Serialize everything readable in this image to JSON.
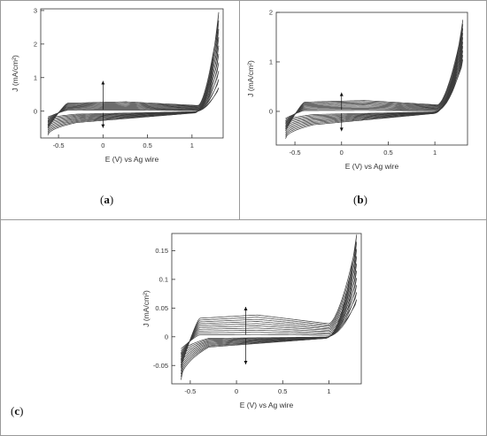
{
  "panels": {
    "a": {
      "label_open": "(",
      "label_letter": "a",
      "label_close": ")"
    },
    "b": {
      "label_open": "(",
      "label_letter": "b",
      "label_close": ")"
    },
    "c": {
      "label_open": "(",
      "label_letter": "c",
      "label_close": ")"
    }
  },
  "chart_data": [
    {
      "id": "a",
      "type": "line",
      "xlabel": "E (V) vs Ag wire",
      "ylabel": "J (mA/cm²)",
      "xlim": [
        -0.7,
        1.35
      ],
      "ylim": [
        -0.8,
        3.05
      ],
      "xticks": [
        -0.5,
        0,
        0.5,
        1
      ],
      "xtick_labels": [
        "-0.5",
        "0",
        "0.5",
        "1"
      ],
      "yticks": [
        0,
        1,
        2,
        3
      ],
      "ytick_labels": [
        "0",
        "1",
        "2",
        "3"
      ],
      "grid": false,
      "n_cycles": 10,
      "series_params": {
        "e_start": -0.62,
        "e_vertex": 1.3,
        "onset": 1.02,
        "up_plateau_first": 0.03,
        "up_plateau_last": 0.28,
        "down_plateau_first": -0.1,
        "down_plateau_last": -0.38,
        "peak_first": 0.7,
        "peak_last": 2.95,
        "tail_first": -0.25,
        "tail_last": -0.72
      },
      "arrow_at_x": 0,
      "arrow_up_to": 0.9,
      "arrow_down_to": -0.5
    },
    {
      "id": "b",
      "type": "line",
      "xlabel": "E (V) vs Ag wire",
      "ylabel": "J (mA/cm²)",
      "xlim": [
        -0.7,
        1.35
      ],
      "ylim": [
        -0.68,
        2.0
      ],
      "xticks": [
        -0.5,
        0,
        0.5,
        1
      ],
      "xtick_labels": [
        "-0.5",
        "0",
        "0.5",
        "1"
      ],
      "yticks": [
        0,
        1,
        2
      ],
      "ytick_labels": [
        "0",
        "1",
        "2"
      ],
      "grid": false,
      "n_cycles": 10,
      "series_params": {
        "e_start": -0.6,
        "e_vertex": 1.3,
        "onset": 0.98,
        "up_plateau_first": 0.02,
        "up_plateau_last": 0.22,
        "down_plateau_first": -0.07,
        "down_plateau_last": -0.3,
        "peak_first": 1.05,
        "peak_last": 1.85,
        "tail_first": -0.2,
        "tail_last": -0.55
      },
      "arrow_at_x": 0,
      "arrow_up_to": 0.38,
      "arrow_down_to": -0.4
    },
    {
      "id": "c",
      "type": "line",
      "xlabel": "E (V) vs Ag wire",
      "ylabel": "J (mA/cm²)",
      "xlim": [
        -0.7,
        1.35
      ],
      "ylim": [
        -0.082,
        0.18
      ],
      "xticks": [
        -0.5,
        0,
        0.5,
        1
      ],
      "xtick_labels": [
        "-0.5",
        "0",
        "0.5",
        "1"
      ],
      "yticks": [
        -0.05,
        0,
        0.05,
        0.1,
        0.15
      ],
      "ytick_labels": [
        "-0.05",
        "0",
        "0.05",
        "0.1",
        "0.15"
      ],
      "grid": false,
      "n_cycles": 10,
      "series_params": {
        "e_start": -0.6,
        "e_vertex": 1.3,
        "onset": 0.95,
        "up_plateau_first": 0.004,
        "up_plateau_last": 0.038,
        "down_plateau_first": -0.003,
        "down_plateau_last": -0.02,
        "peak_first": 0.065,
        "peak_last": 0.178,
        "tail_first": -0.03,
        "tail_last": -0.075
      },
      "arrow_at_x": 0.1,
      "arrow_up_to": 0.052,
      "arrow_down_to": -0.048
    }
  ]
}
